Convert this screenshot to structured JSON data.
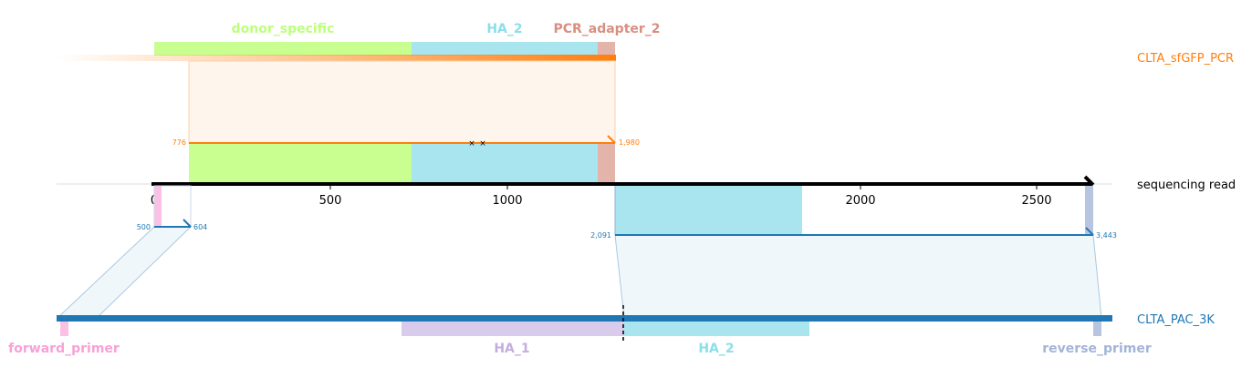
{
  "tracks": {
    "top": {
      "name": "CLTA_sfGFP_PCR",
      "color": "#ff7f0e"
    },
    "read": {
      "name": "sequencing read",
      "color": "#000000"
    },
    "bottom": {
      "name": "CLTA_PAC_3K",
      "color": "#1f77b4"
    }
  },
  "features_top": [
    {
      "name": "donor_specific",
      "color": "#bcff7a"
    },
    {
      "name": "HA_2",
      "color": "#8adfe8"
    },
    {
      "name": "PCR_adapter_2",
      "color": "#d98f7f"
    }
  ],
  "features_bottom": [
    {
      "name": "forward_primer",
      "color": "#f7a1d6"
    },
    {
      "name": "HA_1",
      "color": "#c4aee0"
    },
    {
      "name": "HA_2",
      "color": "#8adfe8"
    },
    {
      "name": "reverse_primer",
      "color": "#a2b4d8"
    }
  ],
  "axis": {
    "ticks": [
      "0",
      "500",
      "1000",
      "1500",
      "2000",
      "2500"
    ]
  },
  "alignments": [
    {
      "start_label": "776",
      "end_label": "1,980",
      "color": "#ff7f0e"
    },
    {
      "start_label": "500",
      "end_label": "604",
      "color": "#1f77b4"
    },
    {
      "start_label": "2,091",
      "end_label": "3,443",
      "color": "#1f77b4"
    }
  ]
}
